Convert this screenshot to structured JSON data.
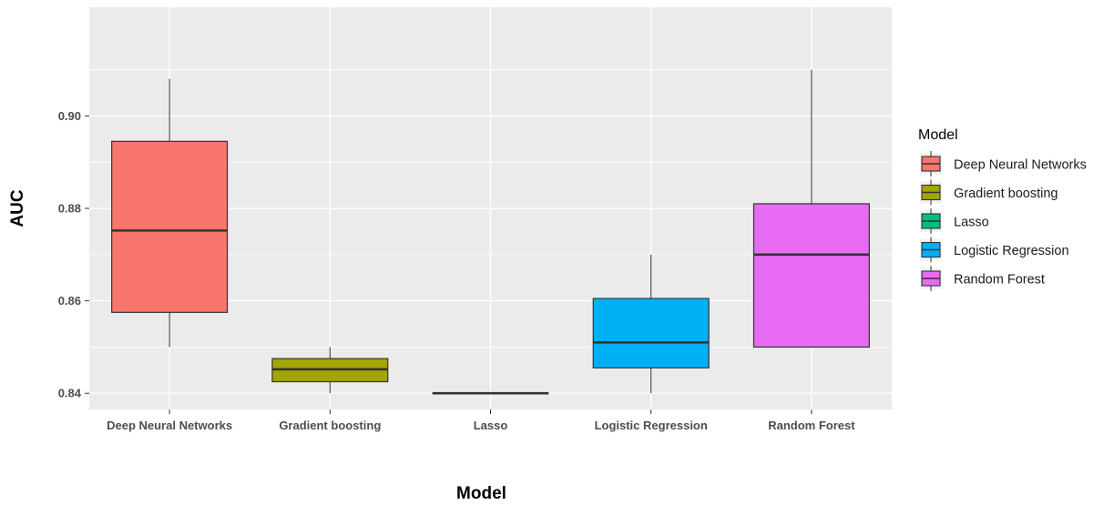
{
  "chart_data": {
    "type": "boxplot",
    "title": "",
    "xlabel": "Model",
    "ylabel": "AUC",
    "categories": [
      "Deep Neural Networks",
      "Gradient boosting",
      "Lasso",
      "Logistic Regression",
      "Random Forest"
    ],
    "series": [
      {
        "name": "Deep Neural Networks",
        "color": "#F8766D",
        "min": 0.85,
        "q1": 0.8575,
        "median": 0.8752,
        "q3": 0.8945,
        "max": 0.908
      },
      {
        "name": "Gradient boosting",
        "color": "#A3A500",
        "min": 0.84,
        "q1": 0.8425,
        "median": 0.8452,
        "q3": 0.8475,
        "max": 0.85
      },
      {
        "name": "Lasso",
        "color": "#00BF7D",
        "min": 0.84,
        "q1": 0.84,
        "median": 0.84,
        "q3": 0.84,
        "max": 0.84
      },
      {
        "name": "Logistic Regression",
        "color": "#00B0F6",
        "min": 0.84,
        "q1": 0.8455,
        "median": 0.851,
        "q3": 0.8605,
        "max": 0.87
      },
      {
        "name": "Random Forest",
        "color": "#E76BF3",
        "min": 0.85,
        "q1": 0.85,
        "median": 0.87,
        "q3": 0.881,
        "max": 0.91
      }
    ],
    "yticks": [
      0.84,
      0.86,
      0.88,
      0.9
    ],
    "ytick_labels": [
      "0.84",
      "0.86",
      "0.88",
      "0.90"
    ],
    "ylim": [
      0.8365,
      0.9235
    ],
    "grid": true,
    "legend": {
      "title": "Model",
      "position": "right"
    }
  }
}
